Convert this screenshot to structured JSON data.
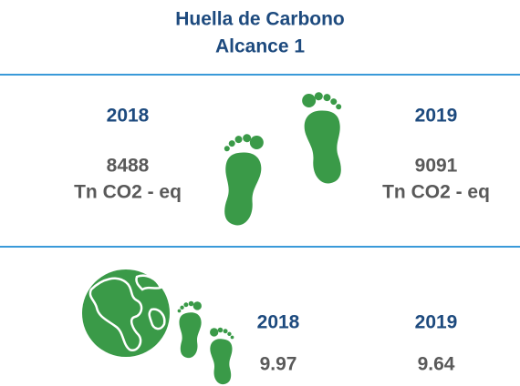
{
  "header": {
    "title": "Huella de Carbono",
    "subtitle": "Alcance 1"
  },
  "total": [
    {
      "year": "2018",
      "value": 8488,
      "unit": "Tn CO2 - eq"
    },
    {
      "year": "2019",
      "value": 9091,
      "unit": "Tn CO2 - eq"
    }
  ],
  "ratio": [
    {
      "year": "2018",
      "value": 9.97
    },
    {
      "year": "2019",
      "value": 9.64
    }
  ]
}
